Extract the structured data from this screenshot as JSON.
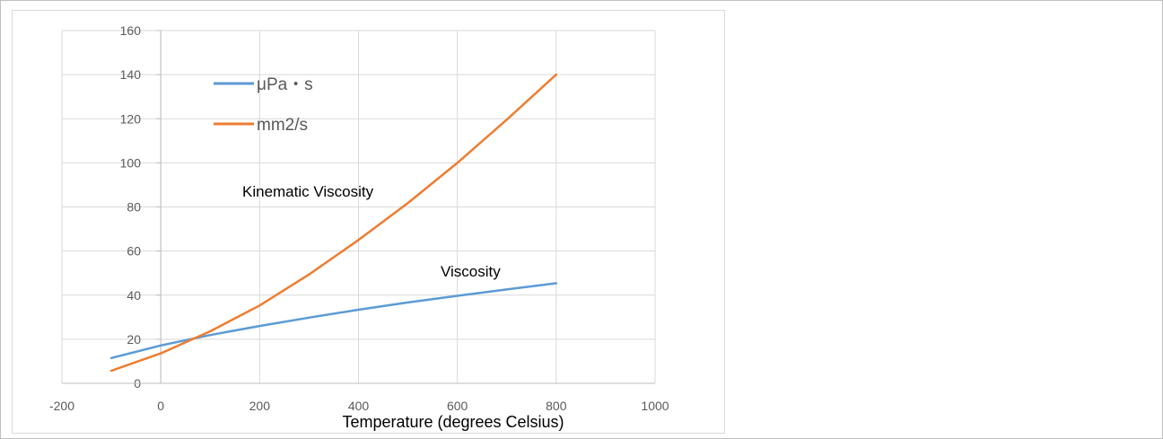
{
  "chart_data": {
    "type": "line",
    "xlabel": "Temperature (degrees Celsius)",
    "ylabel": "",
    "xlim": [
      -200,
      1000
    ],
    "ylim": [
      0,
      160
    ],
    "x_ticks": [
      -200,
      0,
      200,
      400,
      600,
      800,
      1000
    ],
    "y_ticks": [
      0,
      20,
      40,
      60,
      80,
      100,
      120,
      140,
      160
    ],
    "grid": true,
    "legend_position": "upper-left inside plot",
    "series": [
      {
        "name": "μPa・s",
        "color": "#5b9bd5",
        "x": [
          -100,
          0,
          100,
          200,
          300,
          400,
          500,
          600,
          700,
          800
        ],
        "y": [
          11.5,
          17.2,
          21.9,
          26.0,
          29.8,
          33.4,
          36.7,
          39.7,
          42.6,
          45.4
        ]
      },
      {
        "name": "mm2/s",
        "color": "#ed7d31",
        "x": [
          -100,
          0,
          100,
          200,
          300,
          400,
          500,
          600,
          700,
          800
        ],
        "y": [
          5.7,
          13.6,
          23.6,
          35.3,
          49.4,
          65.0,
          81.8,
          100.0,
          119.6,
          140.0
        ]
      }
    ],
    "annotations": [
      {
        "text": "Kinematic Viscosity",
        "series": "mm2/s"
      },
      {
        "text": "Viscosity",
        "series": "μPa・s"
      }
    ]
  }
}
